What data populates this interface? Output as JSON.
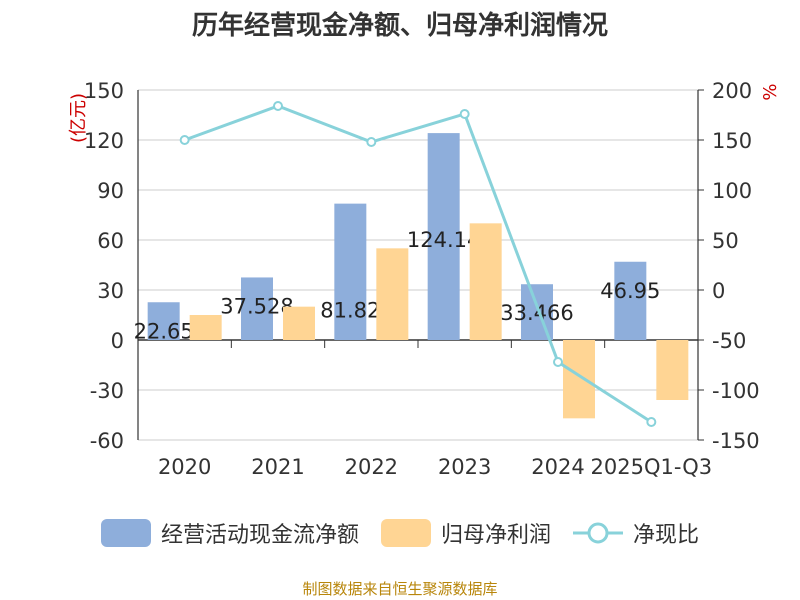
{
  "title": "历年经营现金净额、归母净利润情况",
  "footer": "制图数据来自恒生聚源数据库",
  "legend": [
    {
      "name": "经营活动现金流净额",
      "kind": "bar",
      "color": "#8eaedb"
    },
    {
      "name": "归母净利润",
      "kind": "bar",
      "color": "#ffd594"
    },
    {
      "name": "净现比",
      "kind": "line",
      "color": "#88d2da"
    }
  ],
  "chart_data": {
    "type": "bar",
    "title": "历年经营现金净额、归母净利润情况",
    "categories": [
      "2020",
      "2021",
      "2022",
      "2023",
      "2024",
      "2025Q1-Q3"
    ],
    "ylabel_left": "(亿元)",
    "ylabel_right": "%",
    "ylim_left": [
      -60,
      150
    ],
    "ylim_right": [
      -150,
      200
    ],
    "yticks_left": [
      -60,
      -30,
      0,
      30,
      60,
      90,
      120,
      150
    ],
    "yticks_right": [
      -150,
      -100,
      -50,
      0,
      50,
      100,
      150,
      200
    ],
    "series": [
      {
        "name": "经营活动现金流净额",
        "type": "bar",
        "axis": "left",
        "color": "#8eaedb",
        "values": [
          22.65,
          37.528,
          81.82,
          124.14,
          33.466,
          46.95
        ],
        "labels": [
          "22.65",
          "37.528",
          "81.82",
          "124.14",
          "33.466",
          "46.95"
        ]
      },
      {
        "name": "归母净利润",
        "type": "bar",
        "axis": "left",
        "color": "#ffd594",
        "values": [
          15,
          20,
          55,
          70,
          -47,
          -36
        ]
      },
      {
        "name": "净现比",
        "type": "line",
        "axis": "right",
        "color": "#88d2da",
        "values": [
          150,
          184,
          148,
          176,
          -72,
          -132
        ]
      }
    ],
    "grid": true
  }
}
